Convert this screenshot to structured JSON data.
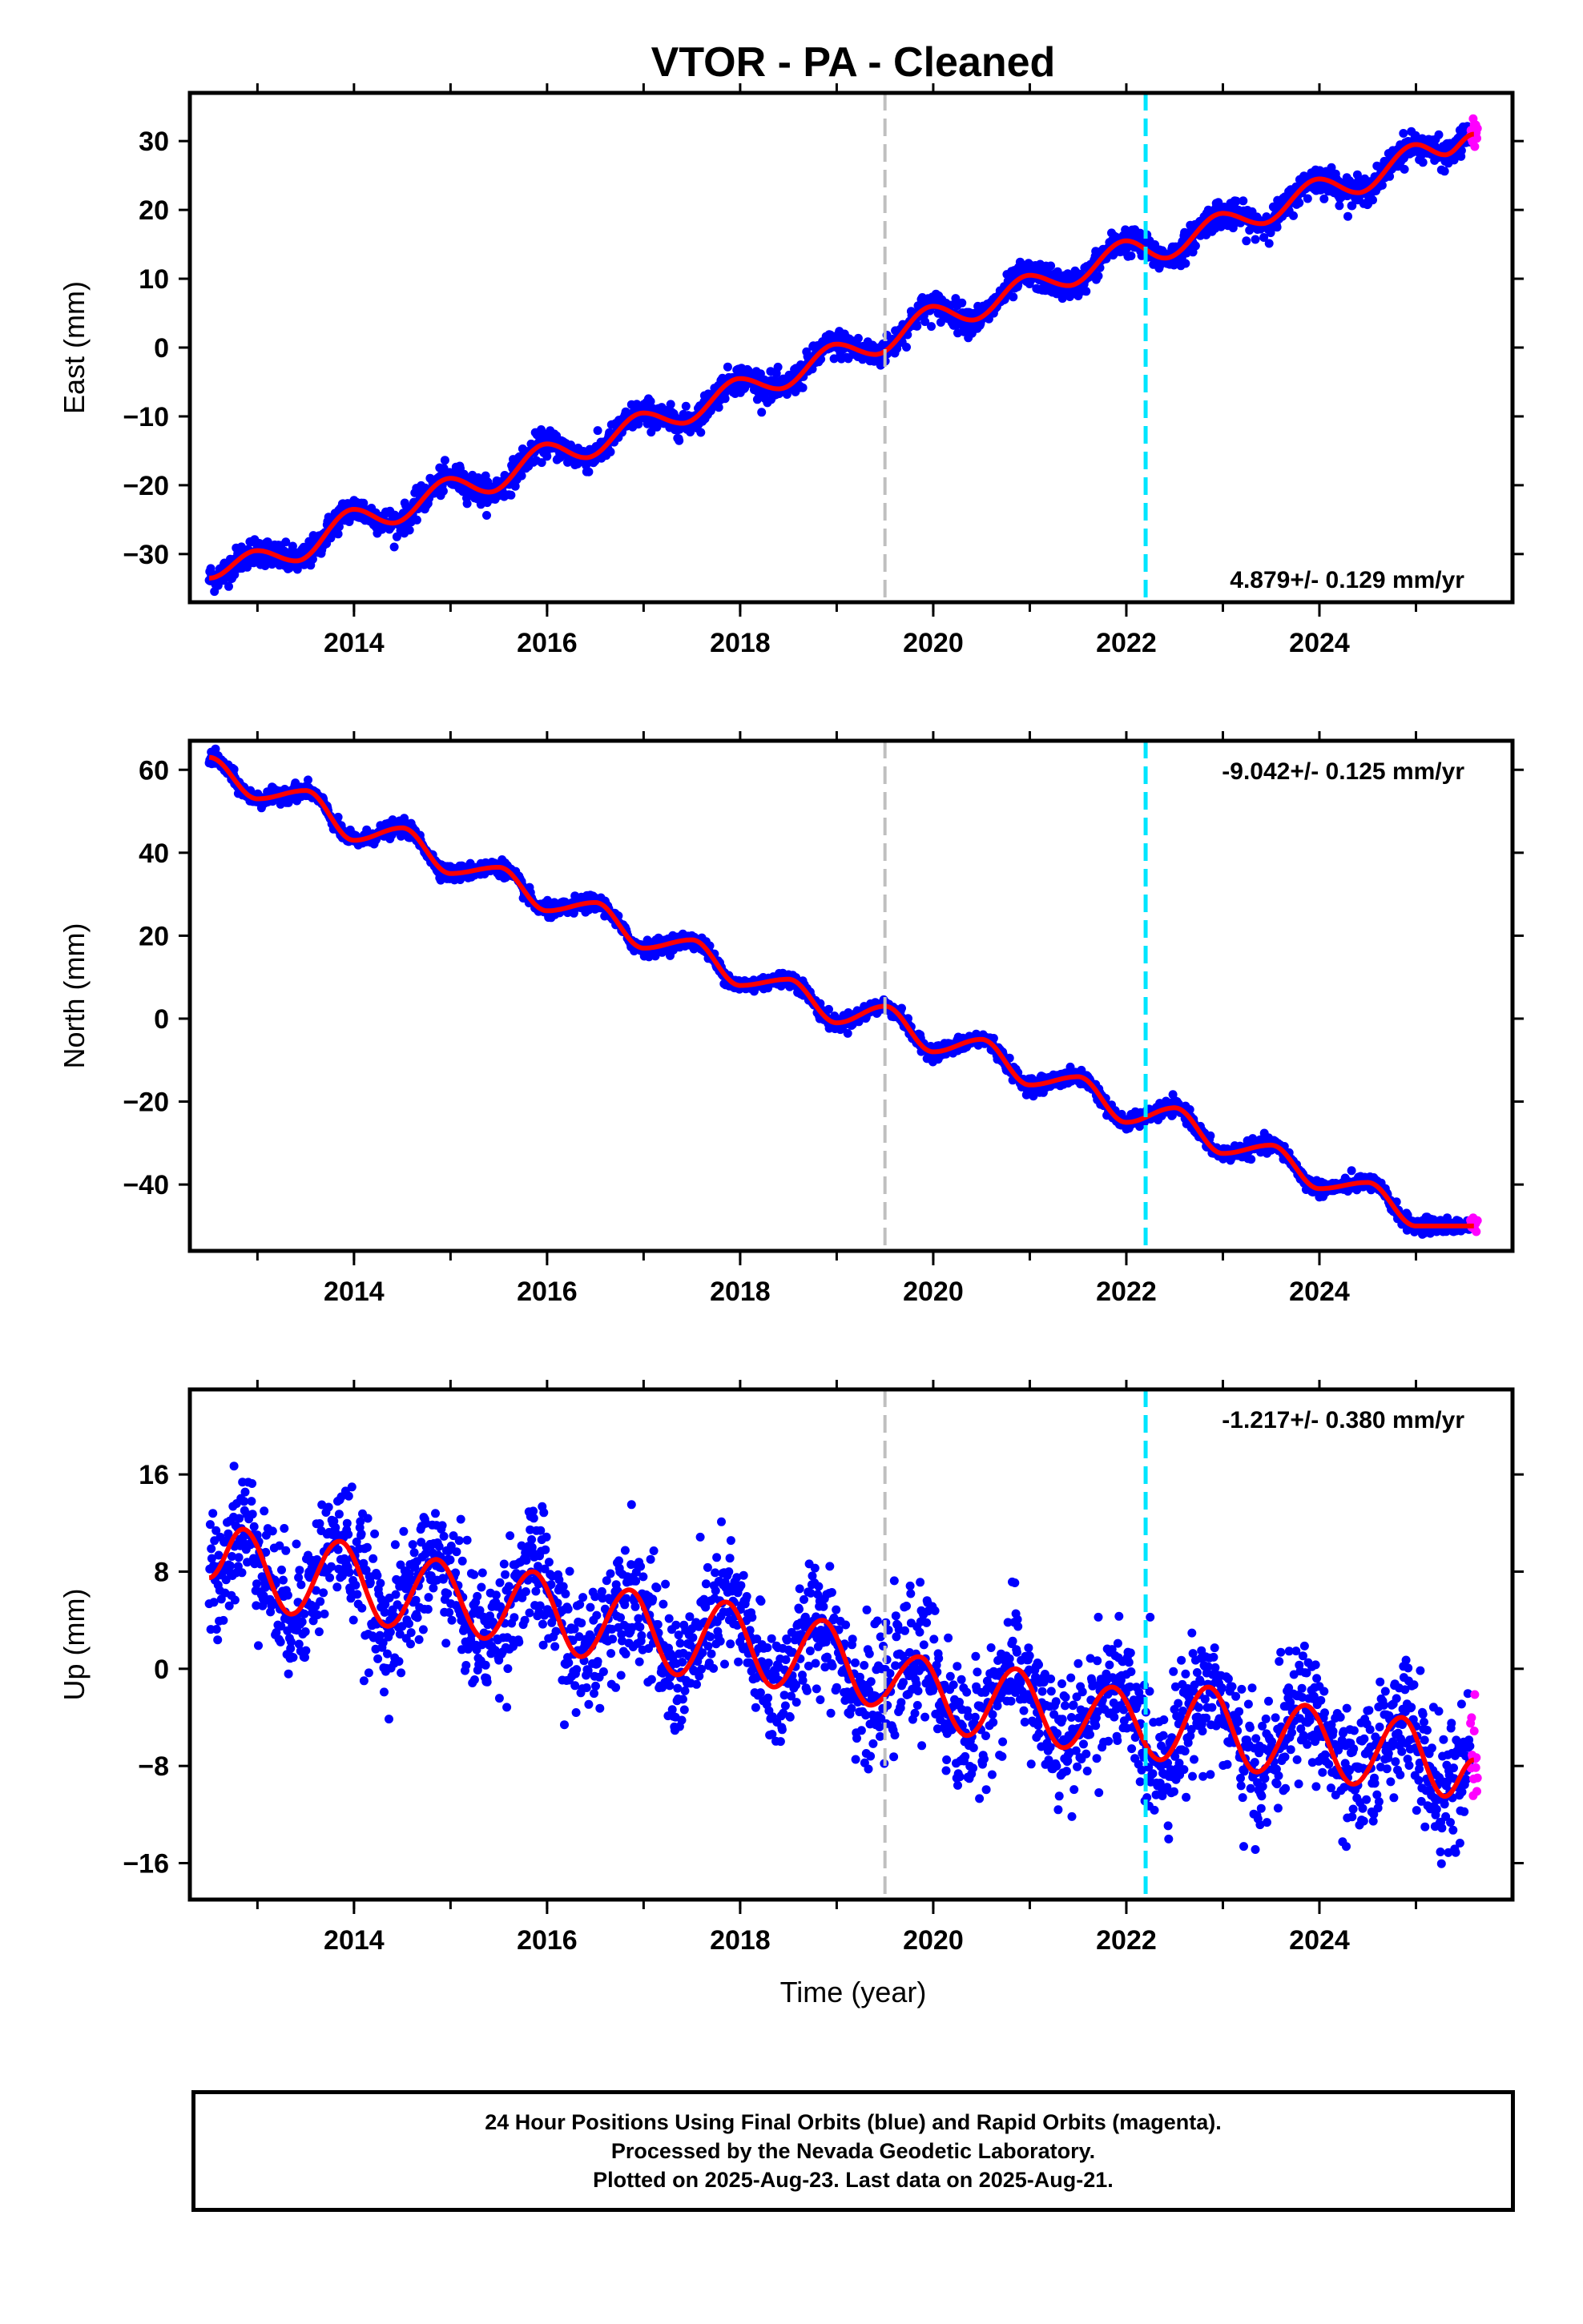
{
  "title": "VTOR  - PA - Cleaned",
  "xlabel": "Time (year)",
  "x_ticks": [
    2014,
    2016,
    2018,
    2020,
    2022,
    2024
  ],
  "colors": {
    "final_orbits": "#0000ff",
    "rapid_orbits": "#ff00ff",
    "model_fit": "#ff0000",
    "gray_line": "#bfbfbf",
    "cyan_line": "#00e5ff"
  },
  "caption": {
    "line1": "24 Hour Positions Using Final Orbits (blue) and Rapid Orbits (magenta).",
    "line2": "Processed by the Nevada Geodetic Laboratory.",
    "line3": "Plotted on 2025-Aug-23. Last data on 2025-Aug-21."
  },
  "chart_data": [
    {
      "type": "scatter",
      "ylabel": "East (mm)",
      "xlim": [
        2012.3,
        2026.0
      ],
      "ylim": [
        -37,
        37
      ],
      "y_ticks": [
        -30,
        -20,
        -10,
        0,
        10,
        20,
        30
      ],
      "y_tick_labels": [
        "−30",
        "−20",
        "−10",
        "0",
        "10",
        "20",
        "30"
      ],
      "rate_label": "4.879+/- 0.129 mm/yr",
      "rate_position": "bottom-right",
      "gray_vline_year": 2019.5,
      "cyan_vline_year": 2022.2,
      "data_start": 2012.5,
      "data_end": 2025.64,
      "rapid_start": 2025.56,
      "value_at_start": -33.5,
      "rate_mm_per_yr": 4.879,
      "annual_amplitude": 2.2,
      "annual_phase_peak": 0.75,
      "semiannual_amplitude": 0.5,
      "noise_sd": 1.0,
      "fit_points": [
        [
          2012.5,
          -33.5
        ],
        [
          2013.0,
          -29.5
        ],
        [
          2013.4,
          -31
        ],
        [
          2014.0,
          -23.5
        ],
        [
          2014.4,
          -25.5
        ],
        [
          2015.0,
          -19
        ],
        [
          2015.4,
          -21
        ],
        [
          2016.0,
          -14
        ],
        [
          2016.4,
          -16
        ],
        [
          2017.0,
          -9.5
        ],
        [
          2017.4,
          -11
        ],
        [
          2018.0,
          -4.5
        ],
        [
          2018.4,
          -6
        ],
        [
          2019.0,
          0.5
        ],
        [
          2019.4,
          -1
        ],
        [
          2020.0,
          6
        ],
        [
          2020.4,
          4
        ],
        [
          2021.0,
          10.5
        ],
        [
          2021.4,
          9
        ],
        [
          2022.0,
          15.5
        ],
        [
          2022.4,
          13
        ],
        [
          2023.0,
          19.5
        ],
        [
          2023.4,
          18
        ],
        [
          2024.0,
          24.5
        ],
        [
          2024.4,
          22.5
        ],
        [
          2025.0,
          29.5
        ],
        [
          2025.3,
          28
        ],
        [
          2025.6,
          31
        ]
      ]
    },
    {
      "type": "scatter",
      "ylabel": "North (mm)",
      "xlim": [
        2012.3,
        2026.0
      ],
      "ylim": [
        -56,
        67
      ],
      "y_ticks": [
        -40,
        -20,
        0,
        20,
        40,
        60
      ],
      "y_tick_labels": [
        "−40",
        "−20",
        "0",
        "20",
        "40",
        "60"
      ],
      "rate_label": "-9.042+/- 0.125 mm/yr",
      "rate_position": "top-right",
      "gray_vline_year": 2019.5,
      "cyan_vline_year": 2022.2,
      "data_start": 2012.5,
      "data_end": 2025.64,
      "rapid_start": 2025.56,
      "value_at_start": 62.5,
      "rate_mm_per_yr": -9.042,
      "annual_amplitude": 3.2,
      "annual_phase_peak": 0.5,
      "semiannual_amplitude": 0.4,
      "noise_sd": 0.9,
      "fit_points": [
        [
          2012.5,
          63
        ],
        [
          2013.0,
          53
        ],
        [
          2013.5,
          55
        ],
        [
          2014.0,
          43
        ],
        [
          2014.5,
          46
        ],
        [
          2015.0,
          35
        ],
        [
          2015.5,
          36.5
        ],
        [
          2016.0,
          26
        ],
        [
          2016.5,
          28
        ],
        [
          2017.0,
          17
        ],
        [
          2017.5,
          19
        ],
        [
          2018.0,
          8
        ],
        [
          2018.5,
          9.5
        ],
        [
          2019.0,
          -1
        ],
        [
          2019.5,
          3
        ],
        [
          2020.0,
          -8
        ],
        [
          2020.5,
          -5
        ],
        [
          2021.0,
          -16
        ],
        [
          2021.5,
          -14
        ],
        [
          2022.0,
          -25
        ],
        [
          2022.5,
          -21.5
        ],
        [
          2023.0,
          -32.5
        ],
        [
          2023.5,
          -30.5
        ],
        [
          2024.0,
          -41
        ],
        [
          2024.5,
          -39.5
        ],
        [
          2025.0,
          -50
        ],
        [
          2025.6,
          -50
        ]
      ]
    },
    {
      "type": "scatter",
      "ylabel": "Up (mm)",
      "xlim": [
        2012.3,
        2026.0
      ],
      "ylim": [
        -19,
        23
      ],
      "y_ticks": [
        -16,
        -8,
        0,
        8,
        16
      ],
      "y_tick_labels": [
        "−16",
        "−8",
        "0",
        "8",
        "16"
      ],
      "rate_label": "-1.217+/- 0.380 mm/yr",
      "rate_position": "top-right",
      "gray_vline_year": 2019.5,
      "cyan_vline_year": 2022.2,
      "data_start": 2012.5,
      "data_end": 2025.64,
      "rapid_start": 2025.56,
      "value_at_start": 7.8,
      "rate_mm_per_yr": -1.217,
      "annual_amplitude": 3.4,
      "annual_phase_peak": 0.85,
      "semiannual_amplitude": 0.6,
      "noise_sd": 2.6,
      "fit_points": [
        [
          2012.5,
          7.5
        ],
        [
          2012.85,
          11.5
        ],
        [
          2013.35,
          4.5
        ],
        [
          2013.85,
          10.5
        ],
        [
          2014.35,
          3.5
        ],
        [
          2014.85,
          9
        ],
        [
          2015.35,
          2.5
        ],
        [
          2015.85,
          8
        ],
        [
          2016.35,
          1
        ],
        [
          2016.85,
          6.5
        ],
        [
          2017.35,
          -0.5
        ],
        [
          2017.85,
          5.5
        ],
        [
          2018.35,
          -1.5
        ],
        [
          2018.85,
          4
        ],
        [
          2019.35,
          -3
        ],
        [
          2019.85,
          1
        ],
        [
          2020.35,
          -5.5
        ],
        [
          2020.85,
          0
        ],
        [
          2021.35,
          -6.5
        ],
        [
          2021.85,
          -1.5
        ],
        [
          2022.35,
          -7.5
        ],
        [
          2022.85,
          -1.5
        ],
        [
          2023.35,
          -8.5
        ],
        [
          2023.85,
          -3
        ],
        [
          2024.35,
          -9.5
        ],
        [
          2024.85,
          -4
        ],
        [
          2025.3,
          -10.5
        ],
        [
          2025.6,
          -7.5
        ]
      ]
    }
  ]
}
